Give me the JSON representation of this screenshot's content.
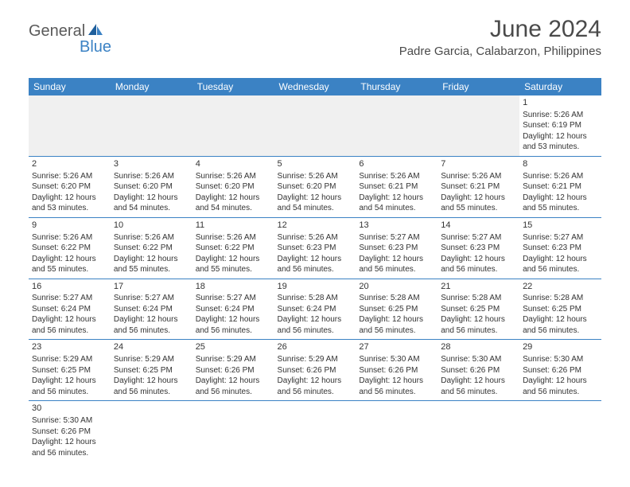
{
  "brand": {
    "general": "General",
    "blue": "Blue"
  },
  "header": {
    "title": "June 2024",
    "location": "Padre Garcia, Calabarzon, Philippines"
  },
  "theme": {
    "header_bg": "#3b82c4",
    "header_text": "#ffffff",
    "pad_row_bg": "#f0f0f0",
    "cell_border": "#3b82c4",
    "title_fontsize": 30,
    "location_fontsize": 15,
    "day_header_fontsize": 12,
    "cell_fontsize": 10
  },
  "weekdays": [
    "Sunday",
    "Monday",
    "Tuesday",
    "Wednesday",
    "Thursday",
    "Friday",
    "Saturday"
  ],
  "calendar_type": "month-grid",
  "start_weekday_index": 6,
  "days": {
    "1": {
      "sunrise": "Sunrise: 5:26 AM",
      "sunset": "Sunset: 6:19 PM",
      "day1": "Daylight: 12 hours",
      "day2": "and 53 minutes."
    },
    "2": {
      "sunrise": "Sunrise: 5:26 AM",
      "sunset": "Sunset: 6:20 PM",
      "day1": "Daylight: 12 hours",
      "day2": "and 53 minutes."
    },
    "3": {
      "sunrise": "Sunrise: 5:26 AM",
      "sunset": "Sunset: 6:20 PM",
      "day1": "Daylight: 12 hours",
      "day2": "and 54 minutes."
    },
    "4": {
      "sunrise": "Sunrise: 5:26 AM",
      "sunset": "Sunset: 6:20 PM",
      "day1": "Daylight: 12 hours",
      "day2": "and 54 minutes."
    },
    "5": {
      "sunrise": "Sunrise: 5:26 AM",
      "sunset": "Sunset: 6:20 PM",
      "day1": "Daylight: 12 hours",
      "day2": "and 54 minutes."
    },
    "6": {
      "sunrise": "Sunrise: 5:26 AM",
      "sunset": "Sunset: 6:21 PM",
      "day1": "Daylight: 12 hours",
      "day2": "and 54 minutes."
    },
    "7": {
      "sunrise": "Sunrise: 5:26 AM",
      "sunset": "Sunset: 6:21 PM",
      "day1": "Daylight: 12 hours",
      "day2": "and 55 minutes."
    },
    "8": {
      "sunrise": "Sunrise: 5:26 AM",
      "sunset": "Sunset: 6:21 PM",
      "day1": "Daylight: 12 hours",
      "day2": "and 55 minutes."
    },
    "9": {
      "sunrise": "Sunrise: 5:26 AM",
      "sunset": "Sunset: 6:22 PM",
      "day1": "Daylight: 12 hours",
      "day2": "and 55 minutes."
    },
    "10": {
      "sunrise": "Sunrise: 5:26 AM",
      "sunset": "Sunset: 6:22 PM",
      "day1": "Daylight: 12 hours",
      "day2": "and 55 minutes."
    },
    "11": {
      "sunrise": "Sunrise: 5:26 AM",
      "sunset": "Sunset: 6:22 PM",
      "day1": "Daylight: 12 hours",
      "day2": "and 55 minutes."
    },
    "12": {
      "sunrise": "Sunrise: 5:26 AM",
      "sunset": "Sunset: 6:23 PM",
      "day1": "Daylight: 12 hours",
      "day2": "and 56 minutes."
    },
    "13": {
      "sunrise": "Sunrise: 5:27 AM",
      "sunset": "Sunset: 6:23 PM",
      "day1": "Daylight: 12 hours",
      "day2": "and 56 minutes."
    },
    "14": {
      "sunrise": "Sunrise: 5:27 AM",
      "sunset": "Sunset: 6:23 PM",
      "day1": "Daylight: 12 hours",
      "day2": "and 56 minutes."
    },
    "15": {
      "sunrise": "Sunrise: 5:27 AM",
      "sunset": "Sunset: 6:23 PM",
      "day1": "Daylight: 12 hours",
      "day2": "and 56 minutes."
    },
    "16": {
      "sunrise": "Sunrise: 5:27 AM",
      "sunset": "Sunset: 6:24 PM",
      "day1": "Daylight: 12 hours",
      "day2": "and 56 minutes."
    },
    "17": {
      "sunrise": "Sunrise: 5:27 AM",
      "sunset": "Sunset: 6:24 PM",
      "day1": "Daylight: 12 hours",
      "day2": "and 56 minutes."
    },
    "18": {
      "sunrise": "Sunrise: 5:27 AM",
      "sunset": "Sunset: 6:24 PM",
      "day1": "Daylight: 12 hours",
      "day2": "and 56 minutes."
    },
    "19": {
      "sunrise": "Sunrise: 5:28 AM",
      "sunset": "Sunset: 6:24 PM",
      "day1": "Daylight: 12 hours",
      "day2": "and 56 minutes."
    },
    "20": {
      "sunrise": "Sunrise: 5:28 AM",
      "sunset": "Sunset: 6:25 PM",
      "day1": "Daylight: 12 hours",
      "day2": "and 56 minutes."
    },
    "21": {
      "sunrise": "Sunrise: 5:28 AM",
      "sunset": "Sunset: 6:25 PM",
      "day1": "Daylight: 12 hours",
      "day2": "and 56 minutes."
    },
    "22": {
      "sunrise": "Sunrise: 5:28 AM",
      "sunset": "Sunset: 6:25 PM",
      "day1": "Daylight: 12 hours",
      "day2": "and 56 minutes."
    },
    "23": {
      "sunrise": "Sunrise: 5:29 AM",
      "sunset": "Sunset: 6:25 PM",
      "day1": "Daylight: 12 hours",
      "day2": "and 56 minutes."
    },
    "24": {
      "sunrise": "Sunrise: 5:29 AM",
      "sunset": "Sunset: 6:25 PM",
      "day1": "Daylight: 12 hours",
      "day2": "and 56 minutes."
    },
    "25": {
      "sunrise": "Sunrise: 5:29 AM",
      "sunset": "Sunset: 6:26 PM",
      "day1": "Daylight: 12 hours",
      "day2": "and 56 minutes."
    },
    "26": {
      "sunrise": "Sunrise: 5:29 AM",
      "sunset": "Sunset: 6:26 PM",
      "day1": "Daylight: 12 hours",
      "day2": "and 56 minutes."
    },
    "27": {
      "sunrise": "Sunrise: 5:30 AM",
      "sunset": "Sunset: 6:26 PM",
      "day1": "Daylight: 12 hours",
      "day2": "and 56 minutes."
    },
    "28": {
      "sunrise": "Sunrise: 5:30 AM",
      "sunset": "Sunset: 6:26 PM",
      "day1": "Daylight: 12 hours",
      "day2": "and 56 minutes."
    },
    "29": {
      "sunrise": "Sunrise: 5:30 AM",
      "sunset": "Sunset: 6:26 PM",
      "day1": "Daylight: 12 hours",
      "day2": "and 56 minutes."
    },
    "30": {
      "sunrise": "Sunrise: 5:30 AM",
      "sunset": "Sunset: 6:26 PM",
      "day1": "Daylight: 12 hours",
      "day2": "and 56 minutes."
    }
  }
}
